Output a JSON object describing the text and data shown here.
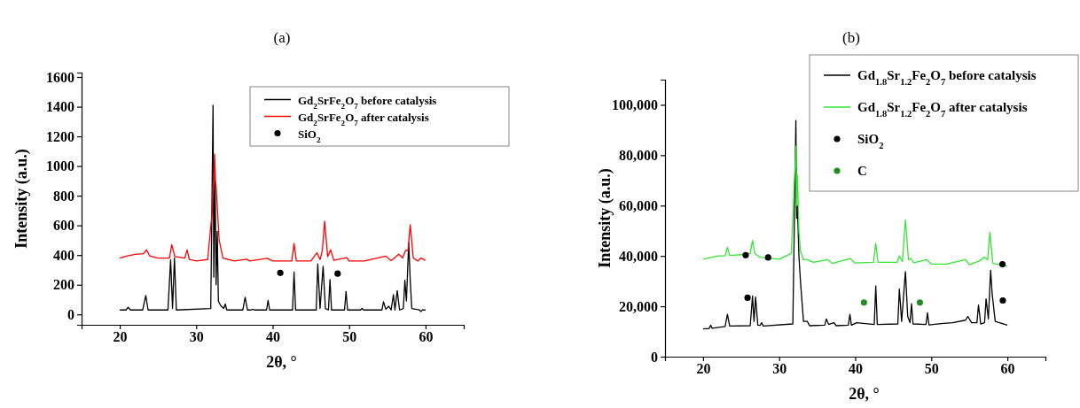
{
  "chart_data": [
    {
      "type": "line",
      "title": "(a)",
      "xlabel": "2θ, °",
      "ylabel": "Intensity (a.u.)",
      "xlim": [
        15,
        65
      ],
      "xticks": [
        20,
        30,
        40,
        50,
        60
      ],
      "ylim": [
        -70,
        1630
      ],
      "yticks": [
        0,
        200,
        400,
        600,
        800,
        1000,
        1200,
        1400,
        1600
      ],
      "legend": "top right",
      "series": [
        {
          "name": "Gd$_{2}$SrFe$_{2}$O$_{7}$ before catalysis",
          "color": "#000000",
          "x": [
            20,
            20.8,
            21.1,
            21.4,
            23.0,
            23.4,
            23.7,
            26.3,
            26.65,
            26.9,
            27.15,
            27.4,
            31.9,
            32.2,
            32.3,
            32.45,
            32.6,
            32.75,
            32.9,
            33.2,
            33.6,
            33.8,
            34.0,
            36.1,
            36.4,
            36.7,
            37.2,
            37.4,
            37.6,
            39.2,
            39.4,
            39.6,
            42.6,
            42.8,
            43.0,
            45.7,
            45.9,
            46.2,
            46.6,
            46.9,
            47.3,
            47.5,
            47.7,
            49.4,
            49.6,
            49.8,
            51.5,
            51.7,
            51.9,
            54.3,
            54.5,
            54.8,
            55.2,
            55.5,
            55.8,
            56.0,
            56.3,
            56.6,
            57.1,
            57.3,
            57.5,
            57.8,
            58.0,
            58.2,
            59.2,
            59.4,
            59.6,
            60
          ],
          "values": [
            30,
            30,
            48,
            30,
            30,
            128,
            30,
            30,
            368,
            40,
            380,
            30,
            40,
            1410,
            250,
            970,
            200,
            560,
            90,
            60,
            40,
            70,
            30,
            30,
            115,
            30,
            30,
            35,
            30,
            30,
            95,
            30,
            30,
            285,
            30,
            30,
            340,
            40,
            325,
            40,
            30,
            235,
            30,
            30,
            155,
            30,
            30,
            40,
            30,
            30,
            85,
            35,
            55,
            30,
            133,
            30,
            160,
            30,
            40,
            230,
            90,
            485,
            230,
            40,
            30,
            20,
            30,
            30
          ]
        },
        {
          "name": "Gd$_{2}$SrFe$_{2}$O$_{7}$ after catalysis",
          "color": "#ff0000",
          "x": [
            20,
            21,
            22,
            23.1,
            23.5,
            23.9,
            25,
            26.5,
            26.8,
            27.2,
            28.5,
            28.8,
            29.1,
            30,
            31.5,
            32.1,
            32.4,
            32.5,
            32.6,
            33,
            33.5,
            35,
            36.6,
            37,
            39.3,
            40,
            42.5,
            42.8,
            43.1,
            45,
            45.8,
            46.2,
            46.5,
            46.8,
            47.2,
            47.6,
            48,
            49.7,
            50,
            52,
            54.8,
            55.5,
            56.5,
            57,
            57.4,
            57.7,
            58.0,
            58.4,
            59,
            59.4,
            60
          ],
          "values": [
            380,
            395,
            405,
            410,
            435,
            395,
            380,
            380,
            470,
            390,
            380,
            435,
            370,
            360,
            370,
            700,
            1080,
            900,
            865,
            500,
            380,
            360,
            372,
            360,
            378,
            360,
            360,
            478,
            360,
            360,
            415,
            370,
            430,
            628,
            390,
            435,
            365,
            383,
            360,
            360,
            393,
            362,
            406,
            380,
            432,
            430,
            604,
            380,
            360,
            380,
            365
          ]
        },
        {
          "name": "SiO$_{2}$",
          "color": "#000000",
          "type": "scatter",
          "marker": "circle",
          "x": [
            41.0,
            48.5
          ],
          "values": [
            280,
            275
          ]
        }
      ]
    },
    {
      "type": "line",
      "title": "(b)",
      "xlabel": "2θ, °",
      "ylabel": "Intensity (a.u.)",
      "xlim": [
        15,
        65
      ],
      "xticks": [
        20,
        30,
        40,
        50,
        60
      ],
      "ylim": [
        0,
        110000
      ],
      "yticks": [
        0,
        {
          "value": 20000,
          "label": "20,000"
        },
        {
          "value": 40000,
          "label": "40,000"
        },
        {
          "value": 60000,
          "label": "60,000"
        },
        {
          "value": 80000,
          "label": "80,000"
        },
        {
          "value": 100000,
          "label": "100,000"
        }
      ],
      "legend": "top right",
      "series": [
        {
          "name": "Gd$_{1.8}$Sr$_{1.2}$Fe$_{2}$O$_{7}$ before catalysis",
          "color": "#000000",
          "x": [
            20,
            20.8,
            21,
            21.2,
            22.9,
            23.2,
            23.5,
            26.2,
            26.5,
            26.7,
            26.9,
            27.2,
            27.5,
            27.7,
            27.9,
            31.8,
            32.2,
            32.3,
            32.4,
            32.6,
            32.8,
            33.2,
            33.7,
            34,
            36,
            36.2,
            36.5,
            37.2,
            37.5,
            39.1,
            39.3,
            39.5,
            40.2,
            42.5,
            42.7,
            42.9,
            45.6,
            45.8,
            46.1,
            46.6,
            46.9,
            47.2,
            47.4,
            47.6,
            49.3,
            49.5,
            49.7,
            51.6,
            52.8,
            54.5,
            54.8,
            55.3,
            56,
            56.2,
            56.5,
            57,
            57.2,
            57.5,
            57.8,
            58,
            58.4,
            60
          ],
          "values": [
            11000,
            11200,
            12500,
            11300,
            12000,
            16800,
            12200,
            12300,
            24100,
            14000,
            23700,
            12500,
            12400,
            13500,
            12200,
            13000,
            93800,
            55000,
            60000,
            40000,
            30000,
            14000,
            14000,
            12300,
            12500,
            15000,
            12800,
            13500,
            12300,
            12500,
            16800,
            12500,
            13500,
            12800,
            28100,
            12800,
            13000,
            26900,
            14000,
            33800,
            16000,
            13500,
            21000,
            13000,
            12800,
            17400,
            12600,
            13200,
            13500,
            14500,
            16000,
            13500,
            13500,
            20500,
            13000,
            13500,
            23000,
            15000,
            34300,
            25000,
            14000,
            12500
          ]
        },
        {
          "name": "Gd$_{1.8}$Sr$_{1.2}$Fe$_{2}$O$_{7}$ after catalysis",
          "color": "#33e633",
          "x": [
            20,
            22,
            22.9,
            23.2,
            23.5,
            25,
            26.2,
            26.5,
            26.8,
            27,
            27.5,
            30,
            31.6,
            32.2,
            32.3,
            32.4,
            32.6,
            32.8,
            33.2,
            33.7,
            34.5,
            36.4,
            37,
            39.3,
            40,
            42.4,
            42.7,
            43,
            45.5,
            45.8,
            46.2,
            46.6,
            47,
            47.3,
            47.7,
            49.4,
            50,
            52,
            54.5,
            55,
            56.3,
            57,
            57.4,
            57.7,
            58.1,
            60
          ],
          "values": [
            38700,
            40000,
            40000,
            43400,
            40200,
            40500,
            41000,
            46200,
            41000,
            40500,
            39500,
            38700,
            41000,
            83700,
            60000,
            72000,
            50000,
            42000,
            38500,
            38500,
            37500,
            38500,
            37000,
            39000,
            37200,
            37500,
            45000,
            37500,
            37500,
            40000,
            37800,
            54300,
            38500,
            39000,
            37300,
            38500,
            36800,
            36800,
            38500,
            36500,
            38000,
            39500,
            38500,
            49400,
            37000,
            36000
          ]
        },
        {
          "name": "SiO$_{2}$",
          "color": "#000000",
          "type": "scatter",
          "marker": "circle",
          "x": [
            25.6,
            28.55,
            59.35,
            25.85,
            59.4
          ],
          "values": [
            40300,
            39400,
            36700,
            23400,
            22300
          ]
        },
        {
          "name": "C",
          "color": "#228b22",
          "type": "scatter",
          "marker": "circle",
          "x": [
            41.15,
            48.5
          ],
          "values": [
            21500,
            21500
          ]
        }
      ]
    }
  ]
}
